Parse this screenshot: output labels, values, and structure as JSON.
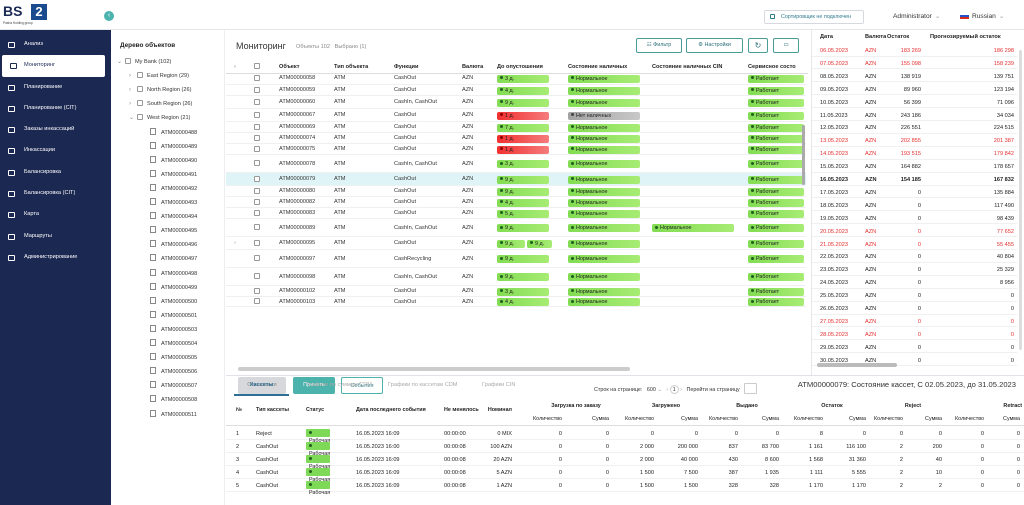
{
  "app": {
    "logo_text": "BS",
    "logo_num": "2",
    "logo_sub": "Pashа Holding group",
    "sorter_status": "Сортировщик не подключен",
    "user": "Administrator",
    "language": "Russian"
  },
  "sidebar": {
    "items": [
      {
        "label": "Анализ",
        "icon": "chart-line-icon"
      },
      {
        "label": "Мониторинг",
        "icon": "monitor-icon",
        "active": true
      },
      {
        "label": "Планирование",
        "icon": "calendar-icon"
      },
      {
        "label": "Планирование (CIT)",
        "icon": "calendar-icon"
      },
      {
        "label": "Заказы инкассаций",
        "icon": "clipboard-icon"
      },
      {
        "label": "Инкассации",
        "icon": "bag-icon"
      },
      {
        "label": "Балансировка",
        "icon": "bars-icon"
      },
      {
        "label": "Балансировка (CIT)",
        "icon": "bars-icon"
      },
      {
        "label": "Карта",
        "icon": "map-pin-icon"
      },
      {
        "label": "Маршруты",
        "icon": "route-icon"
      },
      {
        "label": "Администрирование",
        "icon": "gear-icon"
      }
    ]
  },
  "tree": {
    "title": "Дерево объектов",
    "root": "My Bank (102)",
    "regions": [
      "East Region (29)",
      "North Region (26)",
      "South Region (26)",
      "West Region (21)"
    ],
    "atms": [
      "ATM00000488",
      "ATM00000489",
      "ATM00000490",
      "ATM00000491",
      "ATM00000492",
      "ATM00000493",
      "ATM00000494",
      "ATM00000495",
      "ATM00000496",
      "ATM00000497",
      "ATM00000498",
      "ATM00000499",
      "ATM00000500",
      "ATM00000501",
      "ATM00000503",
      "ATM00000504",
      "ATM00000505",
      "ATM00000506",
      "ATM00000507",
      "ATM00000508",
      "ATM00000511"
    ]
  },
  "monitoring": {
    "title": "Мониторинг",
    "objects_count": "Объекты 102",
    "selected_count": "Выбрано (1)",
    "filter_label": "Фильтр",
    "settings_label": "Настройки",
    "columns": [
      "Объект",
      "Тип объекта",
      "Функции",
      "Валюта",
      "До опустошения",
      "Состояние наличных",
      "Состояние наличных CIN",
      "Сервисное состо"
    ],
    "rows": [
      {
        "id": "ATM00000058",
        "type": "ATM",
        "func": "CashOut",
        "cur": "AZN",
        "days": "3 д.",
        "days_level": "green",
        "cash": "Нормальное",
        "cin": "",
        "service": "Работает"
      },
      {
        "id": "ATM00000059",
        "type": "ATM",
        "func": "CashOut",
        "cur": "AZN",
        "days": "4 д.",
        "days_level": "green",
        "cash": "Нормальное",
        "cin": "",
        "service": "Работает"
      },
      {
        "id": "ATM00000060",
        "type": "ATM",
        "func": "CashIn, CashOut",
        "cur": "AZN",
        "days": "9 д.",
        "days_level": "green",
        "cash": "Нормальное",
        "cin": "",
        "service": "Работает"
      },
      {
        "id": "ATM00000067",
        "type": "ATM",
        "func": "CashOut",
        "cur": "AZN",
        "days": "1 д.",
        "days_level": "red",
        "cash": "Нет наличных",
        "cash_level": "grey",
        "cin": "",
        "service": "Работает"
      },
      {
        "id": "ATM00000069",
        "type": "ATM",
        "func": "CashOut",
        "cur": "AZN",
        "days": "7 д.",
        "days_level": "green",
        "cash": "Нормальное",
        "cin": "",
        "service": "Работает"
      },
      {
        "id": "ATM00000074",
        "type": "ATM",
        "func": "CashOut",
        "cur": "AZN",
        "days": "1 д.",
        "days_level": "red",
        "cash": "Нормальное",
        "cin": "",
        "service": "Работает"
      },
      {
        "id": "ATM00000075",
        "type": "ATM",
        "func": "CashOut",
        "cur": "AZN",
        "days": "1 д.",
        "days_level": "red",
        "cash": "Нормальное",
        "cin": "",
        "service": "Работает"
      },
      {
        "id": "ATM00000078",
        "type": "ATM",
        "func": "CashIn, CashOut",
        "cur": "AZN",
        "days": "3 д.",
        "days_level": "green",
        "cash": "Нормальное",
        "cin": "",
        "service": "Работает"
      },
      {
        "id": "ATM00000079",
        "type": "ATM",
        "func": "CashOut",
        "cur": "AZN",
        "days": "9 д.",
        "days_level": "green",
        "cash": "Нормальное",
        "cin": "",
        "service": "Работает",
        "selected": true
      },
      {
        "id": "ATM00000080",
        "type": "ATM",
        "func": "CashOut",
        "cur": "AZN",
        "days": "9 д.",
        "days_level": "green",
        "cash": "Нормальное",
        "cin": "",
        "service": "Работает"
      },
      {
        "id": "ATM00000082",
        "type": "ATM",
        "func": "CashOut",
        "cur": "AZN",
        "days": "4 д.",
        "days_level": "green",
        "cash": "Нормальное",
        "cin": "",
        "service": "Работает"
      },
      {
        "id": "ATM00000083",
        "type": "ATM",
        "func": "CashOut",
        "cur": "AZN",
        "days": "5 д.",
        "days_level": "green",
        "cash": "Нормальное",
        "cin": "",
        "service": "Работает"
      },
      {
        "id": "ATM00000089",
        "type": "ATM",
        "func": "CashIn, CashOut",
        "cur": "AZN",
        "days": "9 д.",
        "days_level": "green",
        "cash": "Нормальное",
        "cin": "Нормальное",
        "service": "Работает"
      },
      {
        "id": "ATM00000095",
        "type": "ATM",
        "func": "CashOut",
        "cur": "AZN",
        "days": "9 д.",
        "days2": "9 д.",
        "days_level": "green",
        "cash": "Нормальное",
        "cin": "",
        "service": "Работает"
      },
      {
        "id": "ATM00000097",
        "type": "ATM",
        "func": "CashRecycling",
        "cur": "AZN",
        "days": "9 д.",
        "days_level": "green",
        "cash": "Нормальное",
        "cin": "",
        "service": "Работает"
      },
      {
        "id": "ATM00000098",
        "type": "ATM",
        "func": "CashIn, CashOut",
        "cur": "AZN",
        "days": "9 д.",
        "days_level": "green",
        "cash": "Нормальное",
        "cin": "",
        "service": "Работает"
      },
      {
        "id": "ATM00000102",
        "type": "ATM",
        "func": "CashOut",
        "cur": "AZN",
        "days": "3 д.",
        "days_level": "green",
        "cash": "Нормальное",
        "cin": "",
        "service": "Работает"
      },
      {
        "id": "ATM00000103",
        "type": "ATM",
        "func": "CashOut",
        "cur": "AZN",
        "days": "4 д.",
        "days_level": "green",
        "cash": "Нормальное",
        "cin": "",
        "service": "Работает"
      }
    ],
    "btn_reject": "Отказаться",
    "btn_accept": "Принять",
    "btn_events": "События",
    "pager": {
      "rows_label": "Строк на странице:",
      "rows_value": "600",
      "page": "1",
      "goto_label": "Перейти на страницу"
    }
  },
  "forecast": {
    "columns": [
      "Дата",
      "Валюта",
      "Остаток",
      "Прогнозируемый остаток"
    ],
    "rows": [
      {
        "date": "06.05.2023",
        "cur": "AZN",
        "rest": "183 269",
        "fc": "186 298",
        "red": true
      },
      {
        "date": "07.05.2023",
        "cur": "AZN",
        "rest": "155 098",
        "fc": "158 239",
        "red": true
      },
      {
        "date": "08.05.2023",
        "cur": "AZN",
        "rest": "138 919",
        "fc": "139 751"
      },
      {
        "date": "09.05.2023",
        "cur": "AZN",
        "rest": "89 960",
        "fc": "123 194"
      },
      {
        "date": "10.05.2023",
        "cur": "AZN",
        "rest": "56 399",
        "fc": "71 096"
      },
      {
        "date": "11.05.2023",
        "cur": "AZN",
        "rest": "243 186",
        "fc": "34 034"
      },
      {
        "date": "12.05.2023",
        "cur": "AZN",
        "rest": "226 551",
        "fc": "224 515"
      },
      {
        "date": "13.05.2023",
        "cur": "AZN",
        "rest": "202 855",
        "fc": "201 387",
        "red": true
      },
      {
        "date": "14.05.2023",
        "cur": "AZN",
        "rest": "193 515",
        "fc": "179 842",
        "red": true
      },
      {
        "date": "15.05.2023",
        "cur": "AZN",
        "rest": "164 882",
        "fc": "178 657"
      },
      {
        "date": "16.05.2023",
        "cur": "AZN",
        "rest": "154 185",
        "fc": "167 832",
        "bold": true
      },
      {
        "date": "17.05.2023",
        "cur": "AZN",
        "rest": "0",
        "fc": "135 884"
      },
      {
        "date": "18.05.2023",
        "cur": "AZN",
        "rest": "0",
        "fc": "117 490"
      },
      {
        "date": "19.05.2023",
        "cur": "AZN",
        "rest": "0",
        "fc": "98 439"
      },
      {
        "date": "20.05.2023",
        "cur": "AZN",
        "rest": "0",
        "fc": "77 652",
        "red": true
      },
      {
        "date": "21.05.2023",
        "cur": "AZN",
        "rest": "0",
        "fc": "55 455",
        "red": true
      },
      {
        "date": "22.05.2023",
        "cur": "AZN",
        "rest": "0",
        "fc": "40 804"
      },
      {
        "date": "23.05.2023",
        "cur": "AZN",
        "rest": "0",
        "fc": "25 329"
      },
      {
        "date": "24.05.2023",
        "cur": "AZN",
        "rest": "0",
        "fc": "8 956"
      },
      {
        "date": "25.05.2023",
        "cur": "AZN",
        "rest": "0",
        "fc": "0"
      },
      {
        "date": "26.05.2023",
        "cur": "AZN",
        "rest": "0",
        "fc": "0"
      },
      {
        "date": "27.05.2023",
        "cur": "AZN",
        "rest": "0",
        "fc": "0",
        "red": true
      },
      {
        "date": "28.05.2023",
        "cur": "AZN",
        "rest": "0",
        "fc": "0",
        "red": true
      },
      {
        "date": "29.05.2023",
        "cur": "AZN",
        "rest": "0",
        "fc": "0"
      },
      {
        "date": "30.05.2023",
        "cur": "AZN",
        "rest": "0",
        "fc": "0"
      }
    ]
  },
  "cassettes": {
    "tabs": [
      "Кассеты",
      "Графики по суммам CDM",
      "Графики по кассетам CDM",
      "Графики CIN"
    ],
    "title": "ATM00000079: Состояние кассет, С 02.05.2023, до 31.05.2023",
    "group_headers": [
      "Загрузка по заказу",
      "Загружено",
      "Выдано",
      "Остаток",
      "Reject",
      "Retract"
    ],
    "columns": [
      "№",
      "Тип кассеты",
      "Статус",
      "Дата последнего события",
      "Не менялось",
      "Номинал",
      "Количество",
      "Сумма",
      "Количество",
      "Сумма",
      "Количество",
      "Сумма",
      "Количество",
      "Сумма",
      "Количество",
      "Сумма",
      "Количество",
      "Сумма"
    ],
    "rows": [
      [
        "1",
        "Reject",
        "Рабочая",
        "16.05.2023 16:09",
        "00:00:00",
        "0 MIX",
        "0",
        "0",
        "0",
        "0",
        "0",
        "0",
        "8",
        "0",
        "0",
        "0",
        "0",
        "0"
      ],
      [
        "2",
        "CashOut",
        "Рабочая",
        "16.05.2023 16:00",
        "00:00:08",
        "100 AZN",
        "0",
        "0",
        "2 000",
        "200 000",
        "837",
        "83 700",
        "1 161",
        "116 100",
        "2",
        "200",
        "0",
        "0"
      ],
      [
        "3",
        "CashOut",
        "Рабочая",
        "16.05.2023 16:09",
        "00:00:08",
        "20 AZN",
        "0",
        "0",
        "2 000",
        "40 000",
        "430",
        "8 600",
        "1 568",
        "31 360",
        "2",
        "40",
        "0",
        "0"
      ],
      [
        "4",
        "CashOut",
        "Рабочая",
        "16.05.2023 16:09",
        "00:00:08",
        "5 AZN",
        "0",
        "0",
        "1 500",
        "7 500",
        "387",
        "1 935",
        "1 111",
        "5 555",
        "2",
        "10",
        "0",
        "0"
      ],
      [
        "5",
        "CashOut",
        "Рабочая",
        "16.05.2023 16:09",
        "00:00:08",
        "1 AZN",
        "0",
        "0",
        "1 500",
        "1 500",
        "328",
        "328",
        "1 170",
        "1 170",
        "2",
        "2",
        "0",
        "0"
      ]
    ]
  }
}
